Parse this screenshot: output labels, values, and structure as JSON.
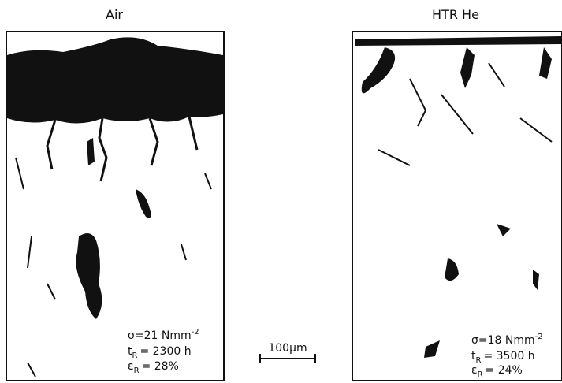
{
  "panels": [
    {
      "title": "Air",
      "stress": {
        "symbol": "σ",
        "text": "=21 Nmm",
        "exponent": "-2"
      },
      "time": {
        "symbol": "t",
        "subscript": "R",
        "text": "= 2300 h"
      },
      "strain": {
        "symbol": "ε",
        "subscript": "R",
        "text": "= 28%"
      }
    },
    {
      "title": "HTR He",
      "stress": {
        "symbol": "σ",
        "text": "=18 Nmm",
        "exponent": "-2"
      },
      "time": {
        "symbol": "t",
        "subscript": "R",
        "text": "= 3500 h"
      },
      "strain": {
        "symbol": "ε",
        "subscript": "R",
        "text": "= 24%"
      }
    }
  ],
  "scale_bar": {
    "label": "100µm"
  }
}
